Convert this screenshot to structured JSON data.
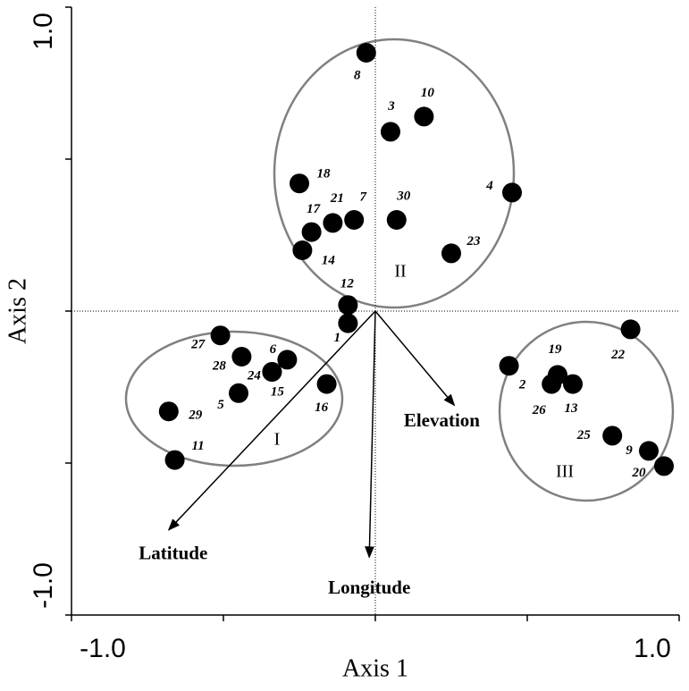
{
  "chart_data": {
    "type": "scatter",
    "xlabel": "Axis 1",
    "ylabel": "Axis 2",
    "xlim": [
      -1,
      1
    ],
    "ylim": [
      -1,
      1
    ],
    "xticks": [
      {
        "value": -1,
        "label": "-1.0"
      },
      {
        "value": 1,
        "label": "1.0"
      }
    ],
    "yticks": [
      {
        "value": -1,
        "label": "-1.0"
      },
      {
        "value": 1,
        "label": "1.0"
      }
    ],
    "xminor_ticks": [
      -0.5,
      0,
      0.5
    ],
    "yminor_ticks": [
      -0.5,
      0,
      0.5
    ],
    "color": "#000000",
    "labels": [
      "1",
      "2",
      "3",
      "4",
      "5",
      "6",
      "7",
      "8",
      "9",
      "10",
      "11",
      "12",
      "13",
      "14",
      "15",
      "16",
      "17",
      "18",
      "19",
      "20",
      "21",
      "22",
      "23",
      "24",
      "25",
      "26",
      "27",
      "28",
      "29",
      "30"
    ],
    "x": [
      -0.09,
      0.44,
      0.05,
      0.45,
      -0.45,
      -0.29,
      -0.07,
      -0.03,
      0.9,
      0.16,
      -0.66,
      -0.09,
      0.65,
      -0.24,
      -0.34,
      -0.16,
      -0.21,
      -0.25,
      0.6,
      0.95,
      -0.14,
      0.84,
      0.25,
      -0.34,
      0.78,
      0.58,
      -0.51,
      -0.44,
      -0.68,
      0.07
    ],
    "y": [
      -0.04,
      -0.18,
      0.59,
      0.39,
      -0.27,
      -0.16,
      0.3,
      0.85,
      -0.46,
      0.64,
      -0.49,
      0.02,
      -0.24,
      0.2,
      -0.2,
      -0.24,
      0.26,
      0.42,
      -0.21,
      -0.51,
      0.29,
      -0.06,
      0.19,
      -0.2,
      -0.41,
      -0.24,
      -0.08,
      -0.15,
      -0.33,
      0.3
    ],
    "groups": [
      "I",
      "II",
      "III"
    ],
    "vectors": [
      {
        "name": "Latitude",
        "x": -0.68,
        "y": -0.72
      },
      {
        "name": "Longitude",
        "x": -0.02,
        "y": -0.81
      },
      {
        "name": "Elevation",
        "x": 0.26,
        "y": -0.31
      }
    ]
  }
}
